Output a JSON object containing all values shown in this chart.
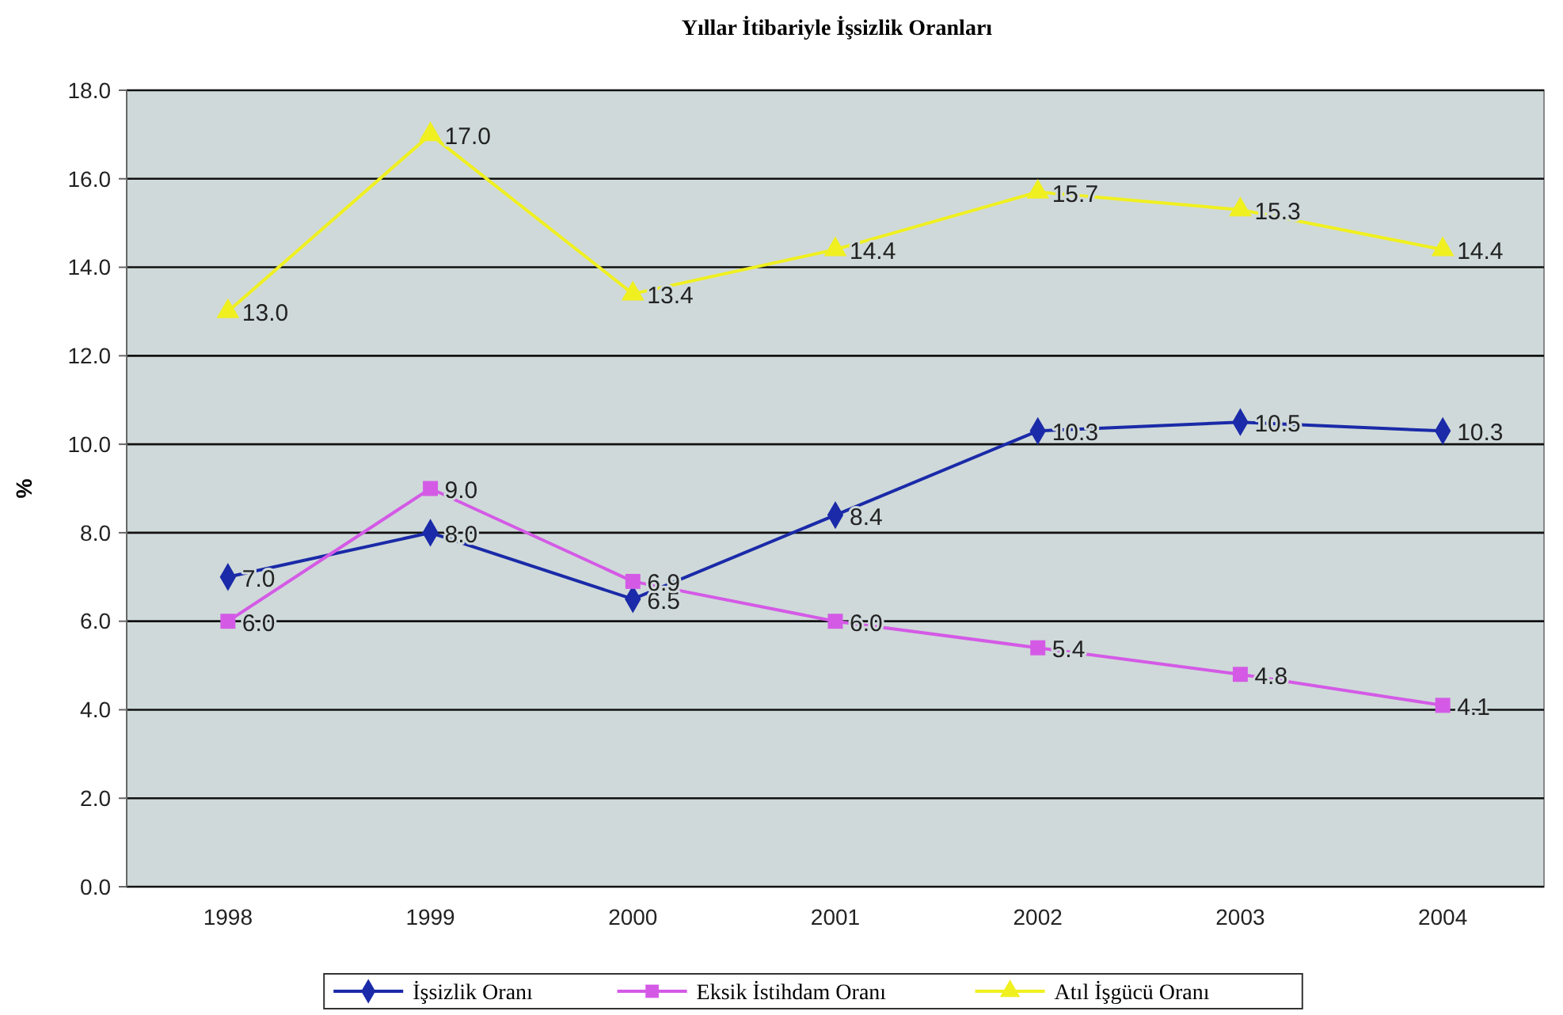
{
  "chart_data": {
    "type": "line",
    "title": "Yıllar İtibariyle İşsizlik Oranları",
    "ylabel": "%",
    "categories": [
      "1998",
      "1999",
      "2000",
      "2001",
      "2002",
      "2003",
      "2004"
    ],
    "series": [
      {
        "name": "İşsizlik Oranı",
        "color": "#1a2aa8",
        "marker": "diamond",
        "values": [
          7.0,
          8.0,
          6.5,
          8.4,
          10.3,
          10.5,
          10.3
        ],
        "value_labels": [
          "7.0",
          "8.0",
          "6.5",
          "8.4",
          "10.3",
          "10.5",
          "10.3"
        ]
      },
      {
        "name": "Eksik İstihdam Oranı",
        "color": "#d45ae6",
        "marker": "square",
        "values": [
          6.0,
          9.0,
          6.9,
          6.0,
          5.4,
          4.8,
          4.1
        ],
        "value_labels": [
          "6.0",
          "9.0",
          "6.9",
          "6.0",
          "5.4",
          "4.8",
          "4.1"
        ]
      },
      {
        "name": "Atıl İşgücü Oranı",
        "color": "#f0f020",
        "marker": "triangle",
        "values": [
          13.0,
          17.0,
          13.4,
          14.4,
          15.7,
          15.3,
          14.4
        ],
        "value_labels": [
          "13.0",
          "17.0",
          "13.4",
          "14.4",
          "15.7",
          "15.3",
          "14.4"
        ]
      }
    ],
    "ylim": [
      0,
      18
    ],
    "yticks": [
      {
        "value": 0,
        "label": "0.0"
      },
      {
        "value": 2,
        "label": "2.0"
      },
      {
        "value": 4,
        "label": "4.0"
      },
      {
        "value": 6,
        "label": "6.0"
      },
      {
        "value": 8,
        "label": "8.0"
      },
      {
        "value": 10,
        "label": "10.0"
      },
      {
        "value": 12,
        "label": "12.0"
      },
      {
        "value": 14,
        "label": "14.0"
      },
      {
        "value": 16,
        "label": "16.0"
      },
      {
        "value": 18,
        "label": "18.0"
      }
    ],
    "grid": "y",
    "legend": "bottom"
  }
}
